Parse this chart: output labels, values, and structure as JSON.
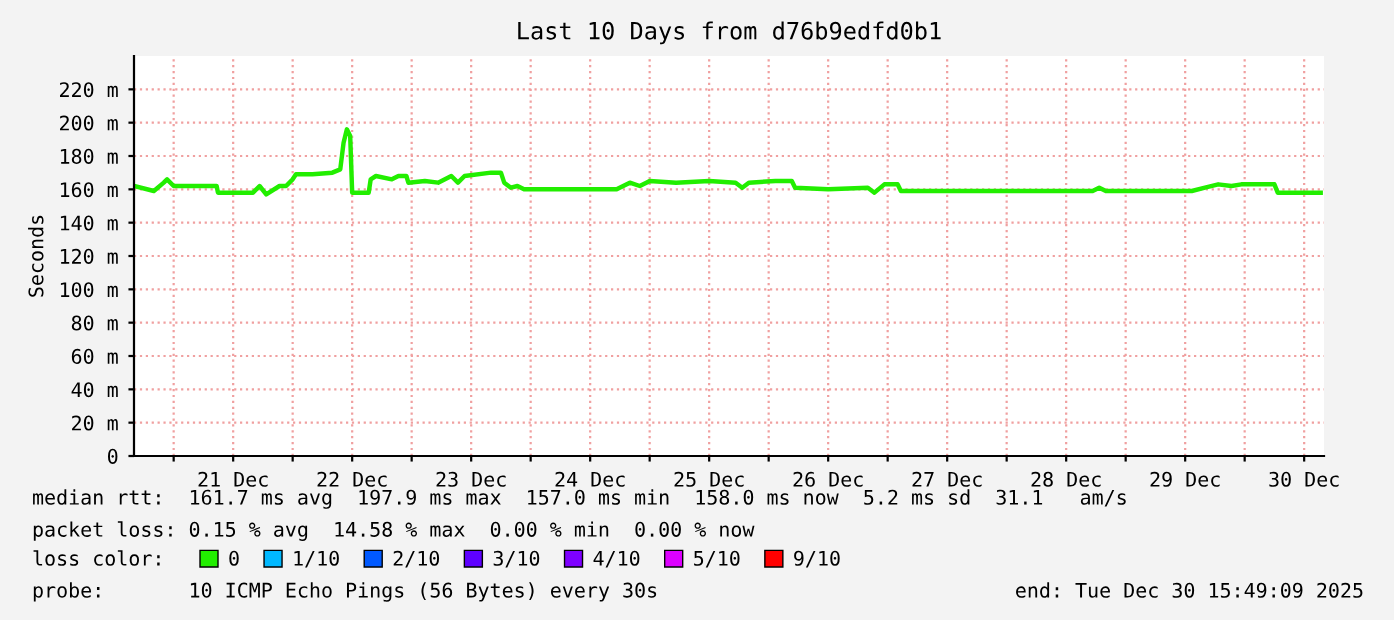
{
  "chart_data": {
    "type": "line",
    "title": "Last 10 Days from d76b9edfd0b1",
    "ylabel": "Seconds",
    "legend_title": "loss color:",
    "legend": "bottom",
    "grid": true,
    "marker": "none",
    "line_style": "solid",
    "xlim": [
      "2025-12-20T16:00",
      "2025-12-30T16:00"
    ],
    "xticks": [
      {
        "value": "2025-12-21",
        "label": null
      },
      {
        "value": "2025-12-21T12:00",
        "label": "21 Dec"
      },
      {
        "value": "2025-12-22",
        "label": null
      },
      {
        "value": "2025-12-22T12:00",
        "label": "22 Dec"
      },
      {
        "value": "2025-12-23",
        "label": null
      },
      {
        "value": "2025-12-23T12:00",
        "label": "23 Dec"
      },
      {
        "value": "2025-12-24",
        "label": null
      },
      {
        "value": "2025-12-24T12:00",
        "label": "24 Dec"
      },
      {
        "value": "2025-12-25",
        "label": null
      },
      {
        "value": "2025-12-25T12:00",
        "label": "25 Dec"
      },
      {
        "value": "2025-12-26",
        "label": null
      },
      {
        "value": "2025-12-26T12:00",
        "label": "26 Dec"
      },
      {
        "value": "2025-12-27",
        "label": null
      },
      {
        "value": "2025-12-27T12:00",
        "label": "27 Dec"
      },
      {
        "value": "2025-12-28",
        "label": null
      },
      {
        "value": "2025-12-28T12:00",
        "label": "28 Dec"
      },
      {
        "value": "2025-12-29",
        "label": null
      },
      {
        "value": "2025-12-29T12:00",
        "label": "29 Dec"
      },
      {
        "value": "2025-12-30",
        "label": null
      },
      {
        "value": "2025-12-30T12:00",
        "label": "30 Dec"
      }
    ],
    "ylim": [
      0,
      240
    ],
    "yticks": [
      0,
      {
        "value": 20,
        "label": "20 m"
      },
      {
        "value": 40,
        "label": "40 m"
      },
      {
        "value": 60,
        "label": "60 m"
      },
      {
        "value": 80,
        "label": "80 m"
      },
      {
        "value": 100,
        "label": "100 m"
      },
      {
        "value": 120,
        "label": "120 m"
      },
      {
        "value": 140,
        "label": "140 m"
      },
      {
        "value": 160,
        "label": "160 m"
      },
      {
        "value": 180,
        "label": "180 m"
      },
      {
        "value": 200,
        "label": "200 m"
      },
      {
        "value": 220,
        "label": "220 m"
      }
    ],
    "series": [
      {
        "name": "0",
        "color": "#22ee00",
        "x": [
          "2025-12-20T16:00",
          "2025-12-20T20:00",
          "2025-12-20T22:00",
          "2025-12-20T22:40",
          "2025-12-21T00:00",
          "2025-12-21T08:40",
          "2025-12-21T08:56",
          "2025-12-21T16:00",
          "2025-12-21T17:20",
          "2025-12-21T18:40",
          "2025-12-21T21:20",
          "2025-12-21T22:40",
          "2025-12-22T00:00",
          "2025-12-22T00:40",
          "2025-12-22T04:00",
          "2025-12-22T08:00",
          "2025-12-22T09:36",
          "2025-12-22T10:16",
          "2025-12-22T10:56",
          "2025-12-22T11:36",
          "2025-12-22T12:00",
          "2025-12-22T15:20",
          "2025-12-22T15:44",
          "2025-12-22T16:48",
          "2025-12-22T20:00",
          "2025-12-22T21:20",
          "2025-12-22T22:56",
          "2025-12-22T23:20",
          "2025-12-23T02:40",
          "2025-12-23T05:20",
          "2025-12-23T08:00",
          "2025-12-23T09:20",
          "2025-12-23T10:40",
          "2025-12-23T16:00",
          "2025-12-23T18:00",
          "2025-12-23T18:40",
          "2025-12-23T20:00",
          "2025-12-23T21:20",
          "2025-12-23T22:40",
          "2025-12-24T17:20",
          "2025-12-24T20:00",
          "2025-12-24T22:00",
          "2025-12-24T23:20",
          "2025-12-25T00:00",
          "2025-12-25T05:20",
          "2025-12-25T12:00",
          "2025-12-25T17:20",
          "2025-12-25T18:40",
          "2025-12-25T20:00",
          "2025-12-26T01:20",
          "2025-12-26T04:40",
          "2025-12-26T05:20",
          "2025-12-26T12:00",
          "2025-12-26T20:00",
          "2025-12-26T21:20",
          "2025-12-26T23:20",
          "2025-12-27T02:00",
          "2025-12-27T02:40",
          "2025-12-27T11:20",
          "2025-12-27T21:20",
          "2025-12-28T17:20",
          "2025-12-28T18:40",
          "2025-12-28T20:00",
          "2025-12-29T13:20",
          "2025-12-29T16:00",
          "2025-12-29T18:40",
          "2025-12-29T21:20",
          "2025-12-29T23:20",
          "2025-12-30T06:00",
          "2025-12-30T06:40",
          "2025-12-30T15:20"
        ],
        "values": [
          162,
          159,
          164,
          166,
          162,
          162,
          158,
          158,
          162,
          157,
          162,
          162,
          166,
          169,
          169,
          170,
          172,
          188,
          196,
          192,
          158,
          158,
          166,
          168,
          166,
          168,
          168,
          164,
          165,
          164,
          168,
          164,
          168,
          170,
          170,
          164,
          161,
          162,
          160,
          160,
          164,
          162,
          164,
          165,
          164,
          165,
          164,
          161,
          164,
          165,
          165,
          161,
          160,
          161,
          158,
          163,
          163,
          159,
          159,
          159,
          159,
          161,
          159,
          159,
          161,
          163,
          162,
          163,
          163,
          158,
          158
        ]
      },
      {
        "name": "1/10",
        "color": "#00b8ff"
      },
      {
        "name": "2/10",
        "color": "#0059ff"
      },
      {
        "name": "3/10",
        "color": "#5e00ff"
      },
      {
        "name": "4/10",
        "color": "#7e00ff"
      },
      {
        "name": "5/10",
        "color": "#dd00ff"
      },
      {
        "name": "9/10",
        "color": "#ff0000"
      }
    ],
    "annotations": [
      "median rtt:  161.7 ms avg  197.9 ms max  157.0 ms min  158.0 ms now  5.2 ms sd  31.1   am/s",
      "packet loss: 0.15 % avg  14.58 % max  0.00 % min  0.00 % now",
      "probe:       10 ICMP Echo Pings (56 Bytes) every 30s",
      "end: Tue Dec 30 15:49:09 2025"
    ]
  }
}
